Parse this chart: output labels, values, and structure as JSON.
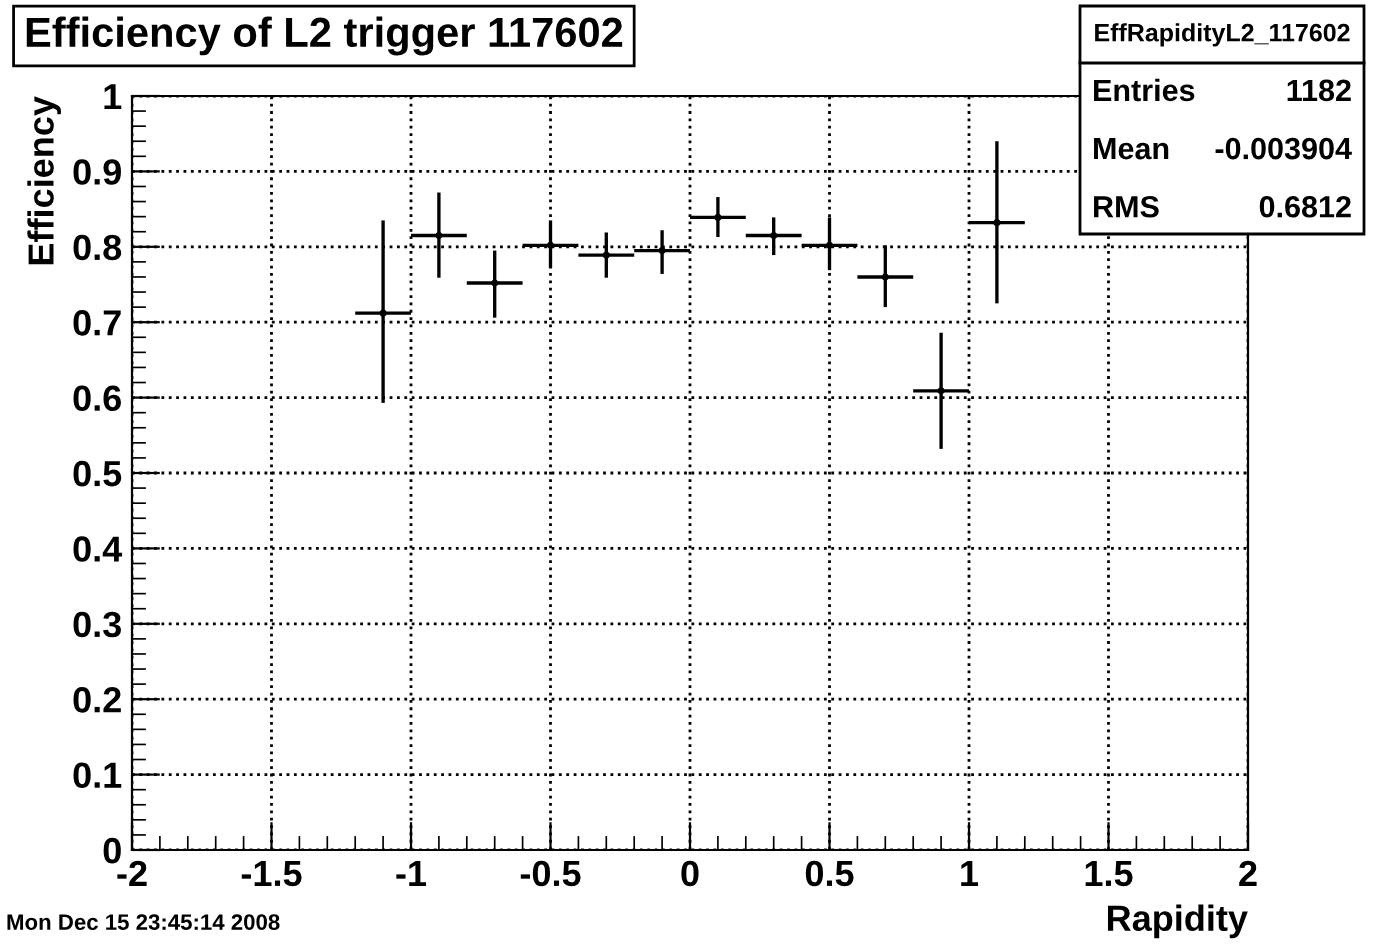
{
  "chart_data": {
    "type": "scatter",
    "title": "Efficiency of L2 trigger 117602",
    "xlabel": "Rapidity",
    "ylabel": "Efficiency",
    "x": [
      -1.1,
      -0.9,
      -0.7,
      -0.5,
      -0.3,
      -0.1,
      0.1,
      0.3,
      0.5,
      0.7,
      0.9,
      1.1
    ],
    "series": [
      {
        "color": "#000000",
        "values": [
          0.712,
          0.815,
          0.752,
          0.802,
          0.789,
          0.795,
          0.839,
          0.815,
          0.802,
          0.76,
          0.609,
          0.832
        ],
        "errors": [
          [
            0.593,
            0.835
          ],
          [
            0.759,
            0.872
          ],
          [
            0.706,
            0.795
          ],
          [
            0.772,
            0.835
          ],
          [
            0.759,
            0.819
          ],
          [
            0.764,
            0.822
          ],
          [
            0.813,
            0.866
          ],
          [
            0.789,
            0.839
          ],
          [
            0.769,
            0.839
          ],
          [
            0.72,
            0.802
          ],
          [
            0.532,
            0.686
          ],
          [
            0.725,
            0.94
          ]
        ],
        "xerrors": [
          0.1,
          0.1,
          0.1,
          0.1,
          0.1,
          0.1,
          0.1,
          0.1,
          0.1,
          0.1,
          0.1,
          0.1
        ]
      }
    ],
    "grid": true,
    "legend": false,
    "xlim": [
      -2,
      2
    ],
    "xticks": [
      -2,
      -1.5,
      -1,
      -0.5,
      0,
      0.5,
      1,
      1.5,
      2
    ],
    "ylim": [
      0,
      1
    ],
    "yticks": [
      0,
      0.1,
      0.2,
      0.3,
      0.4,
      0.5,
      0.6,
      0.7,
      0.8,
      0.9,
      1
    ],
    "annotations": [
      "EffRapidityL2_117602",
      "Entries",
      "1182",
      "Mean",
      "-0.003904",
      "RMS",
      "0.6812",
      "Mon Dec 15 23:45:14 2008"
    ]
  }
}
